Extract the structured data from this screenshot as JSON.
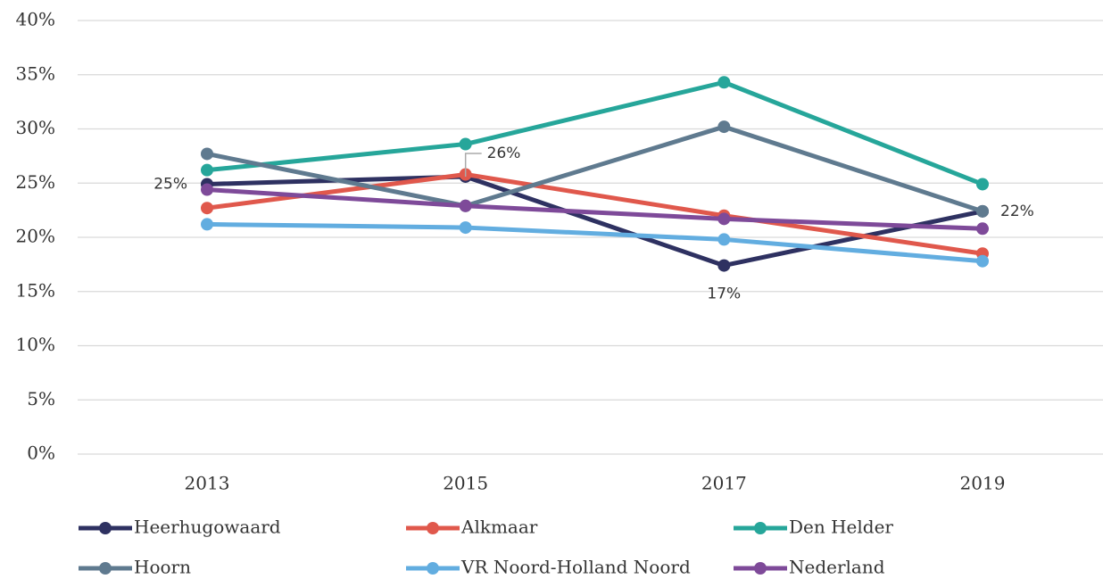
{
  "chart_data": {
    "type": "line",
    "categories": [
      "2013",
      "2015",
      "2017",
      "2019"
    ],
    "series": [
      {
        "name": "Heerhugowaard",
        "color": "#2e3161",
        "values": [
          24.9,
          25.6,
          17.4,
          22.4
        ],
        "value_labels": [
          "25%",
          "26%",
          "17%",
          "22%"
        ]
      },
      {
        "name": "Alkmaar",
        "color": "#e0584c",
        "values": [
          22.7,
          25.8,
          22.0,
          18.5
        ]
      },
      {
        "name": "Den Helder",
        "color": "#26a69a",
        "values": [
          26.2,
          28.6,
          34.3,
          24.9
        ]
      },
      {
        "name": "Hoorn",
        "color": "#5f7a8f",
        "values": [
          27.7,
          22.9,
          30.2,
          22.4
        ]
      },
      {
        "name": "VR Noord-Holland Noord",
        "color": "#62ade0",
        "values": [
          21.2,
          20.9,
          19.8,
          17.8
        ]
      },
      {
        "name": "Nederland",
        "color": "#7e4a99",
        "values": [
          24.4,
          22.9,
          21.7,
          20.8
        ]
      }
    ],
    "ylim": [
      0,
      40
    ],
    "yticks": [
      {
        "value": 0,
        "label": "0%"
      },
      {
        "value": 5,
        "label": "5%"
      },
      {
        "value": 10,
        "label": "10%"
      },
      {
        "value": 15,
        "label": "15%"
      },
      {
        "value": 20,
        "label": "20%"
      },
      {
        "value": 25,
        "label": "25%"
      },
      {
        "value": 30,
        "label": "30%"
      },
      {
        "value": 35,
        "label": "35%"
      },
      {
        "value": 40,
        "label": "40%"
      }
    ],
    "grid": true,
    "legend": "bottom"
  }
}
